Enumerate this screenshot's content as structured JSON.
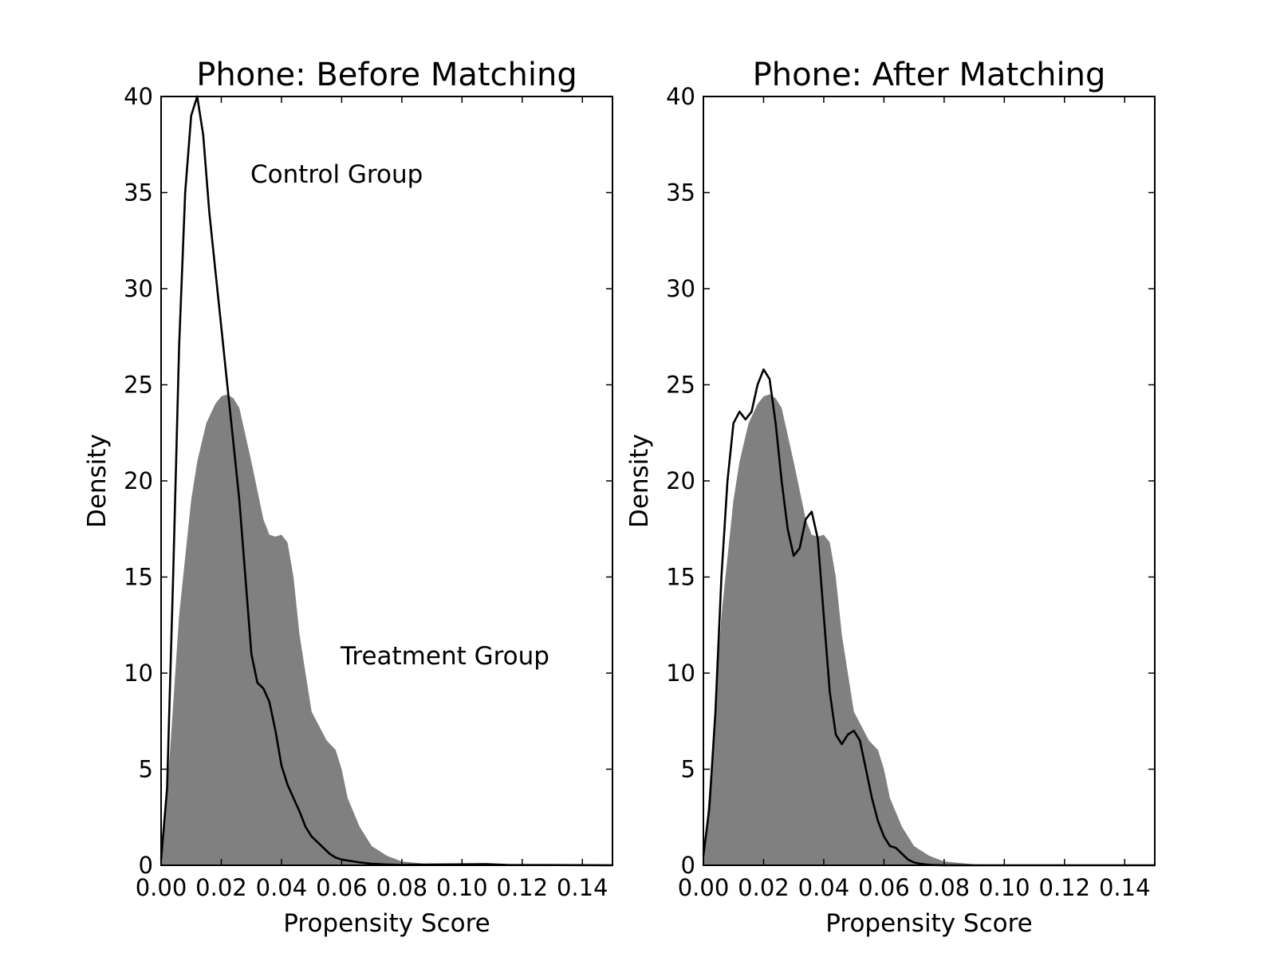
{
  "chart_data": [
    {
      "type": "area",
      "title": "Phone: Before Matching",
      "xlabel": "Propensity Score",
      "ylabel": "Density",
      "xlim": [
        0.0,
        0.15
      ],
      "ylim": [
        0,
        40
      ],
      "xticks": [
        "0.00",
        "0.02",
        "0.04",
        "0.06",
        "0.08",
        "0.10",
        "0.12",
        "0.14"
      ],
      "yticks": [
        "0",
        "5",
        "10",
        "15",
        "20",
        "25",
        "30",
        "35",
        "40"
      ],
      "grid": false,
      "annotations": [
        "Control Group",
        "Treatment Group"
      ],
      "series": [
        {
          "style": "filled area",
          "color": "#808080",
          "x": [
            0.0,
            0.003,
            0.006,
            0.01,
            0.012,
            0.015,
            0.018,
            0.02,
            0.022,
            0.024,
            0.026,
            0.03,
            0.034,
            0.036,
            0.038,
            0.04,
            0.042,
            0.044,
            0.046,
            0.048,
            0.05,
            0.055,
            0.058,
            0.06,
            0.062,
            0.066,
            0.07,
            0.075,
            0.08,
            0.09,
            0.1,
            0.12,
            0.15
          ],
          "y": [
            0.0,
            6.0,
            13.0,
            19.0,
            21.0,
            23.0,
            24.0,
            24.4,
            24.5,
            24.3,
            23.8,
            21.0,
            18.0,
            17.2,
            17.1,
            17.2,
            16.8,
            15.0,
            12.0,
            10.0,
            8.0,
            6.5,
            6.0,
            5.0,
            3.5,
            2.0,
            1.0,
            0.5,
            0.2,
            0.05,
            0.0,
            0.0,
            0.0
          ]
        },
        {
          "style": "line",
          "color": "#000000",
          "x": [
            0.0,
            0.002,
            0.004,
            0.006,
            0.008,
            0.01,
            0.012,
            0.014,
            0.016,
            0.018,
            0.02,
            0.022,
            0.024,
            0.026,
            0.028,
            0.03,
            0.032,
            0.034,
            0.036,
            0.038,
            0.04,
            0.042,
            0.044,
            0.046,
            0.048,
            0.05,
            0.052,
            0.056,
            0.058,
            0.06,
            0.062,
            0.066,
            0.07,
            0.075,
            0.08,
            0.09,
            0.1,
            0.108,
            0.115,
            0.15
          ],
          "y": [
            0.3,
            4.0,
            15.0,
            27.0,
            35.0,
            39.0,
            40.0,
            38.0,
            34.0,
            31.0,
            28.0,
            25.0,
            22.0,
            19.0,
            15.0,
            11.0,
            9.5,
            9.2,
            8.5,
            7.0,
            5.2,
            4.2,
            3.5,
            2.8,
            2.0,
            1.5,
            1.2,
            0.6,
            0.4,
            0.3,
            0.25,
            0.15,
            0.08,
            0.04,
            0.02,
            0.04,
            0.05,
            0.06,
            0.02,
            0.0
          ]
        }
      ]
    },
    {
      "type": "area",
      "title": "Phone: After Matching",
      "xlabel": "Propensity Score",
      "ylabel": "Density",
      "xlim": [
        0.0,
        0.15
      ],
      "ylim": [
        0,
        40
      ],
      "xticks": [
        "0.00",
        "0.02",
        "0.04",
        "0.06",
        "0.08",
        "0.10",
        "0.12",
        "0.14"
      ],
      "yticks": [
        "0",
        "5",
        "10",
        "15",
        "20",
        "25",
        "30",
        "35",
        "40"
      ],
      "grid": false,
      "series": [
        {
          "style": "filled area",
          "color": "#808080",
          "x": [
            0.0,
            0.003,
            0.006,
            0.01,
            0.012,
            0.015,
            0.018,
            0.02,
            0.022,
            0.024,
            0.026,
            0.03,
            0.034,
            0.036,
            0.038,
            0.04,
            0.042,
            0.044,
            0.046,
            0.048,
            0.05,
            0.055,
            0.058,
            0.06,
            0.062,
            0.066,
            0.07,
            0.075,
            0.08,
            0.09,
            0.1,
            0.12,
            0.15
          ],
          "y": [
            0.0,
            6.0,
            13.0,
            19.0,
            21.0,
            23.0,
            24.0,
            24.4,
            24.5,
            24.3,
            23.8,
            21.0,
            18.0,
            17.2,
            17.1,
            17.2,
            16.8,
            15.0,
            12.0,
            10.0,
            8.0,
            6.5,
            6.0,
            5.0,
            3.5,
            2.0,
            1.0,
            0.5,
            0.2,
            0.05,
            0.0,
            0.0,
            0.0
          ]
        },
        {
          "style": "line",
          "color": "#000000",
          "x": [
            0.0,
            0.002,
            0.004,
            0.006,
            0.008,
            0.01,
            0.012,
            0.014,
            0.016,
            0.018,
            0.02,
            0.022,
            0.024,
            0.026,
            0.028,
            0.03,
            0.032,
            0.034,
            0.036,
            0.038,
            0.04,
            0.042,
            0.044,
            0.046,
            0.048,
            0.05,
            0.052,
            0.054,
            0.056,
            0.058,
            0.06,
            0.062,
            0.064,
            0.066,
            0.068,
            0.07,
            0.072,
            0.074,
            0.076,
            0.078,
            0.08,
            0.085,
            0.09,
            0.1,
            0.15
          ],
          "y": [
            0.5,
            3.0,
            8.0,
            15.0,
            20.0,
            23.0,
            23.6,
            23.2,
            23.6,
            25.0,
            25.8,
            25.3,
            23.0,
            20.0,
            17.5,
            16.1,
            16.5,
            18.0,
            18.4,
            17.0,
            13.0,
            9.0,
            6.8,
            6.3,
            6.8,
            7.0,
            6.5,
            5.0,
            3.5,
            2.3,
            1.5,
            1.0,
            0.9,
            0.6,
            0.3,
            0.15,
            0.08,
            0.04,
            0.02,
            0.01,
            0.0,
            0.0,
            0.0,
            0.0,
            0.0
          ]
        }
      ]
    }
  ]
}
